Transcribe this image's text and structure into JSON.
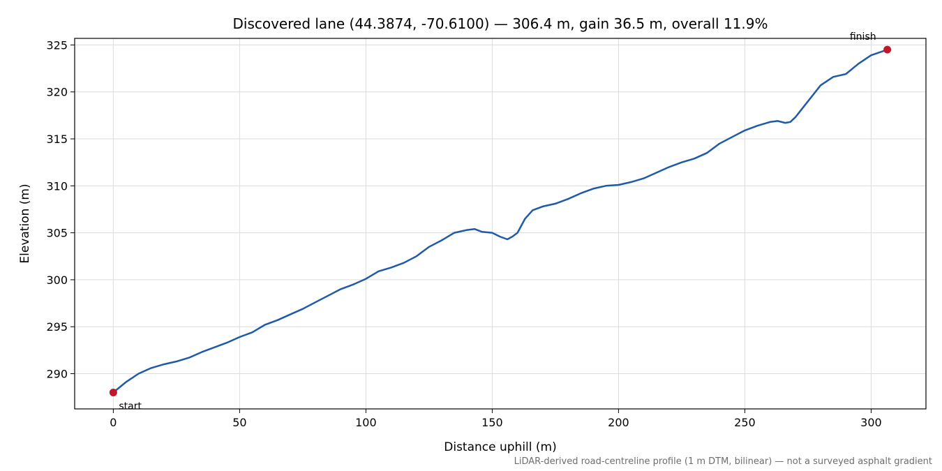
{
  "chart_data": {
    "type": "line",
    "title": "Discovered lane (44.3874, -70.6100) — 306.4 m, gain 36.5 m, overall 11.9%",
    "xlabel": "Distance uphill (m)",
    "ylabel": "Elevation (m)",
    "xlim": [
      -15.3,
      321.7
    ],
    "ylim": [
      286.25,
      325.7
    ],
    "x_ticks": [
      0,
      50,
      100,
      150,
      200,
      250,
      300
    ],
    "y_ticks": [
      290,
      295,
      300,
      305,
      310,
      315,
      320,
      325
    ],
    "x_tick_labels": [
      "0",
      "50",
      "100",
      "150",
      "200",
      "250",
      "300"
    ],
    "y_tick_labels": [
      "290",
      "295",
      "300",
      "305",
      "310",
      "315",
      "320",
      "325"
    ],
    "grid": true,
    "line_color": "#1f5aa8",
    "marker_color": "#c0182a",
    "series": [
      {
        "x": [
          0,
          5,
          10,
          15,
          20,
          25,
          30,
          35,
          40,
          45,
          50,
          55,
          60,
          65,
          70,
          75,
          80,
          85,
          90,
          95,
          100,
          105,
          110,
          115,
          120,
          125,
          130,
          135,
          140,
          143,
          146,
          150,
          153,
          156,
          158,
          160,
          163,
          166,
          170,
          175,
          180,
          185,
          190,
          195,
          200,
          205,
          210,
          215,
          220,
          225,
          230,
          235,
          240,
          245,
          250,
          255,
          260,
          263,
          266,
          268,
          270,
          275,
          280,
          285,
          290,
          295,
          300,
          306.4
        ],
        "y": [
          288.0,
          289.1,
          290.0,
          290.6,
          291.0,
          291.3,
          291.7,
          292.3,
          292.8,
          293.3,
          293.9,
          294.4,
          295.2,
          295.7,
          296.3,
          296.9,
          297.6,
          298.3,
          299.0,
          299.5,
          300.1,
          300.9,
          301.3,
          301.8,
          302.5,
          303.5,
          304.2,
          305.0,
          305.3,
          305.4,
          305.1,
          305.0,
          304.6,
          304.3,
          304.6,
          305.0,
          306.5,
          307.4,
          307.8,
          308.1,
          308.6,
          309.2,
          309.7,
          310.0,
          310.1,
          310.4,
          310.8,
          311.4,
          312.0,
          312.5,
          312.9,
          313.5,
          314.5,
          315.2,
          315.9,
          316.4,
          316.8,
          316.9,
          316.7,
          316.8,
          317.3,
          319.0,
          320.7,
          321.6,
          321.9,
          323.0,
          323.9,
          324.5
        ]
      }
    ],
    "annotations": [
      {
        "text": "start",
        "x": 0,
        "y": 288.0
      },
      {
        "text": "finish",
        "x": 306.4,
        "y": 324.5
      }
    ],
    "footnote": "LiDAR-derived road-centreline profile (1 m DTM, bilinear) — not a surveyed asphalt gradient"
  }
}
